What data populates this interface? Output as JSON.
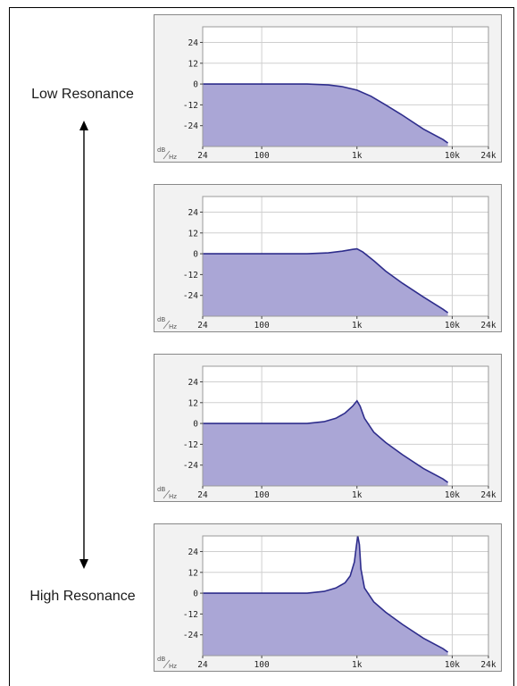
{
  "labels": {
    "low": "Low Resonance",
    "high": "High Resonance"
  },
  "axis": {
    "y_ticks": [
      "24",
      "12",
      "0",
      "-12",
      "-24"
    ],
    "y_values": [
      24,
      12,
      0,
      -12,
      -24
    ],
    "x_ticks": [
      "24",
      "100",
      "1k",
      "10k",
      "24k"
    ],
    "x_values": [
      24,
      100,
      1000,
      10000,
      24000
    ],
    "y_unit": "dB",
    "x_unit": "Hz"
  },
  "colors": {
    "fill": "#aaa6d6",
    "line": "#2e2d8c",
    "grid": "#cfcfcf",
    "border": "#888888",
    "panel_bg": "#f2f2f2",
    "plot_bg": "#ffffff"
  },
  "chart_data": [
    {
      "type": "area",
      "ylim": [
        -36,
        33
      ],
      "xlim": [
        24,
        24000
      ],
      "x_scale": "log",
      "grid": true,
      "x": [
        24,
        300,
        500,
        700,
        1000,
        1400,
        2000,
        3000,
        5000,
        8000,
        9000
      ],
      "y": [
        0,
        0,
        -0.5,
        -1.5,
        -3.5,
        -7,
        -12,
        -18,
        -26,
        -32,
        -34
      ]
    },
    {
      "type": "area",
      "ylim": [
        -36,
        33
      ],
      "xlim": [
        24,
        24000
      ],
      "x_scale": "log",
      "grid": true,
      "x": [
        24,
        300,
        500,
        700,
        900,
        1000,
        1150,
        1500,
        2000,
        3000,
        5000,
        8000,
        9000
      ],
      "y": [
        0,
        0,
        0.5,
        1.5,
        2.5,
        2.8,
        1,
        -4,
        -10,
        -17,
        -25,
        -32,
        -34
      ]
    },
    {
      "type": "area",
      "ylim": [
        -36,
        33
      ],
      "xlim": [
        24,
        24000
      ],
      "x_scale": "log",
      "grid": true,
      "x": [
        24,
        300,
        450,
        600,
        750,
        900,
        1000,
        1080,
        1200,
        1500,
        2000,
        3000,
        5000,
        8000,
        9000
      ],
      "y": [
        0,
        0,
        1,
        3,
        6,
        10,
        13,
        10,
        3,
        -5,
        -11,
        -18,
        -26,
        -32,
        -34
      ]
    },
    {
      "type": "area",
      "ylim": [
        -36,
        33
      ],
      "xlim": [
        24,
        24000
      ],
      "x_scale": "log",
      "grid": true,
      "x": [
        24,
        300,
        450,
        600,
        750,
        850,
        940,
        990,
        1020,
        1060,
        1100,
        1200,
        1500,
        2000,
        3000,
        5000,
        8000,
        9000
      ],
      "y": [
        0,
        0,
        1,
        3,
        6,
        10,
        18,
        28,
        33,
        28,
        14,
        3,
        -5,
        -11,
        -18,
        -26,
        -32,
        -34
      ]
    }
  ]
}
